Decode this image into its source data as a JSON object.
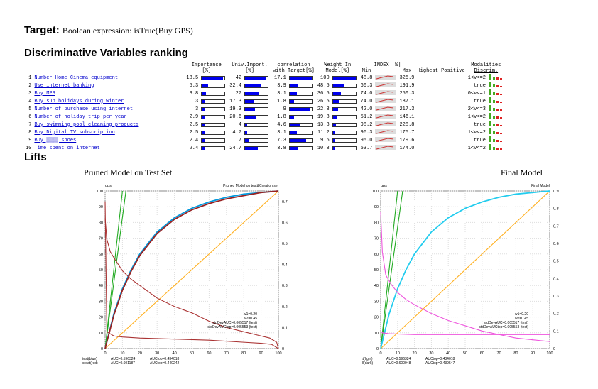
{
  "target": {
    "label": "Target:",
    "expression": "Boolean expression: isTrue(Buy GPS)"
  },
  "section_ranking": "Discriminative Variables ranking",
  "section_lifts": "Lifts",
  "table": {
    "headers": {
      "importance": "Importance",
      "importance_unit": "[%]",
      "univ": "Univ.Import.",
      "univ_unit": "[%]",
      "corr": "correlation",
      "corr_unit": "with Target[%]",
      "weight": "Weight In",
      "weight_unit": "Model[%]",
      "index": "INDEX [%]",
      "min": "Min",
      "max": "Max",
      "hp": "Highest Positive",
      "discrim": "Discrim.",
      "modalities": "Modalities"
    },
    "rows": [
      {
        "rank": "1",
        "name": "Number Home Cinema equipment",
        "importance": 18.5,
        "univ": 42.0,
        "corr": 17.1,
        "weight": 100.0,
        "min": "48.8",
        "max": "325.9",
        "mod": "1<v<=2"
      },
      {
        "rank": "2",
        "name": "Use internet banking",
        "importance": 5.3,
        "univ": 32.4,
        "corr": 3.9,
        "weight": 48.5,
        "min": "60.3",
        "max": "191.9",
        "mod": "true"
      },
      {
        "rank": "3",
        "name": "Buy MP3",
        "importance": 3.8,
        "univ": 27.0,
        "corr": 3.1,
        "weight": 36.5,
        "min": "74.0",
        "max": "250.3",
        "mod": "0<v<=1"
      },
      {
        "rank": "4",
        "name": "Buy sun holidays during winter",
        "importance": 3.0,
        "univ": 17.3,
        "corr": 1.8,
        "weight": 26.5,
        "min": "74.0",
        "max": "187.1",
        "mod": "true"
      },
      {
        "rank": "5",
        "name": "Number of purchase using internet",
        "importance": 3.0,
        "univ": 19.3,
        "corr": 9.0,
        "weight": 22.3,
        "min": "42.0",
        "max": "217.3",
        "mod": "2<v<=3"
      },
      {
        "rank": "6",
        "name": "Number of holiday trip per year",
        "importance": 2.9,
        "univ": 20.6,
        "corr": 1.8,
        "weight": 19.8,
        "min": "51.2",
        "max": "146.1",
        "mod": "1<v<=2"
      },
      {
        "rank": "7",
        "name": "Buy swimming pool cleaning products",
        "importance": 2.5,
        "univ": 4.0,
        "corr": 4.6,
        "weight": 13.3,
        "min": "98.2",
        "max": "228.8",
        "mod": "true"
      },
      {
        "rank": "8",
        "name": "Buy Digital TV subscription",
        "importance": 2.5,
        "univ": 4.7,
        "corr": 3.1,
        "weight": 11.2,
        "min": "96.3",
        "max": "175.7",
        "mod": "1<v<=2"
      },
      {
        "rank": "9",
        "name": "Buy ▒▒▒▒ shoes",
        "importance": 2.4,
        "univ": 7.0,
        "corr": 7.3,
        "weight": 9.6,
        "min": "95.0",
        "max": "179.6",
        "mod": "true"
      },
      {
        "rank": "10",
        "name": "Time spent on internet",
        "importance": 2.4,
        "univ": 24.7,
        "corr": 3.8,
        "weight": 10.3,
        "min": "53.7",
        "max": "174.0",
        "mod": "1<v<=2"
      }
    ]
  },
  "chart_data": [
    {
      "type": "line",
      "title": "Pruned Model on Test Set",
      "inner_title": "Pruned Model on test&Creation set",
      "ylabel": "gps",
      "xlim": [
        0,
        100
      ],
      "ylim": [
        0,
        100
      ],
      "y2lim": [
        0,
        0.75
      ],
      "x_ticks": [
        "0",
        "10",
        "20",
        "30",
        "40",
        "50",
        "60",
        "70",
        "80",
        "90",
        "100"
      ],
      "y_ticks": [
        "0",
        "10",
        "20",
        "30",
        "40",
        "50",
        "60",
        "70",
        "80",
        "90",
        "100"
      ],
      "y2_ticks": [
        "0",
        "0.1",
        "0.2",
        "0.3",
        "0.4",
        "0.5",
        "0.6",
        "0.7"
      ],
      "annotations": [
        "w1=0.20",
        "w2=0.45",
        "stdDevAUC=0.005517 (test)",
        "stdDevAUCtop=0.005553 (test)"
      ],
      "footer": [
        [
          "test(blue)",
          "AUC=0.596324",
          "AUCtop=0.434018"
        ],
        [
          "creat(red)",
          "AUC=0.601187",
          "AUCtop=0.440242"
        ]
      ],
      "series": [
        {
          "color": "#22aa22",
          "axis": "left",
          "x": [
            0,
            12
          ],
          "y": [
            0,
            100
          ]
        },
        {
          "color": "#22aa22",
          "axis": "left",
          "x": [
            0,
            10
          ],
          "y": [
            0,
            100
          ]
        },
        {
          "color": "#ffb020",
          "axis": "left",
          "x": [
            0,
            100
          ],
          "y": [
            0,
            100
          ]
        },
        {
          "color": "#0099dd",
          "axis": "left",
          "x": [
            0,
            5,
            10,
            15,
            20,
            30,
            40,
            50,
            60,
            70,
            80,
            90,
            100
          ],
          "y": [
            0,
            22,
            38,
            50,
            60,
            74,
            83,
            89,
            93,
            96,
            98,
            99,
            100
          ]
        },
        {
          "color": "#992222",
          "axis": "left",
          "x": [
            0,
            5,
            10,
            15,
            20,
            30,
            40,
            50,
            60,
            70,
            80,
            90,
            100
          ],
          "y": [
            0,
            21,
            37,
            49,
            59,
            73,
            82,
            88,
            92,
            95,
            97,
            99,
            100
          ]
        },
        {
          "color": "#aa3333",
          "axis": "right",
          "x": [
            0,
            1,
            3,
            6,
            10,
            15,
            20,
            30,
            40,
            50,
            60,
            70,
            80,
            90,
            95,
            99,
            100
          ],
          "y": [
            0.62,
            0.52,
            0.46,
            0.42,
            0.37,
            0.33,
            0.3,
            0.24,
            0.2,
            0.17,
            0.13,
            0.1,
            0.08,
            0.06,
            0.05,
            0.03,
            0.0
          ]
        },
        {
          "color": "#aa3333",
          "axis": "right",
          "x": [
            0,
            1,
            5,
            10,
            20,
            40,
            60,
            80,
            90,
            96,
            100
          ],
          "y": [
            0.7,
            0.08,
            0.06,
            0.055,
            0.05,
            0.045,
            0.04,
            0.03,
            0.025,
            0.02,
            0.0
          ]
        }
      ]
    },
    {
      "type": "line",
      "title": "Final Model",
      "inner_title": "Final Model",
      "ylabel": "gps",
      "xlim": [
        0,
        100
      ],
      "ylim": [
        0,
        100
      ],
      "y2lim": [
        0,
        0.9
      ],
      "x_ticks": [
        "0",
        "10",
        "20",
        "30",
        "40",
        "50",
        "60",
        "70",
        "80",
        "90",
        "100"
      ],
      "y_ticks": [
        "0",
        "10",
        "20",
        "30",
        "40",
        "50",
        "60",
        "70",
        "80",
        "90",
        "100"
      ],
      "y2_ticks": [
        "0",
        "0.1",
        "0.2",
        "0.3",
        "0.4",
        "0.5",
        "0.6",
        "0.7",
        "0.8",
        "0.9"
      ],
      "annotations": [
        "w1=0.20",
        "w2=0.45",
        "stdDevAUC=0.005517 (test)",
        "stdDevAUCtop=0.005553 (test)"
      ],
      "footer": [
        [
          "test(light)",
          "AUC=0.596324",
          "AUCtop=0.434018"
        ],
        [
          "Full(dark)",
          "AUC=0.600948",
          "AUCtop=0.439547"
        ]
      ],
      "series": [
        {
          "color": "#22aa22",
          "axis": "left",
          "x": [
            0,
            13
          ],
          "y": [
            0,
            100
          ]
        },
        {
          "color": "#22aa22",
          "axis": "left",
          "x": [
            0,
            10
          ],
          "y": [
            0,
            100
          ]
        },
        {
          "color": "#ffb020",
          "axis": "left",
          "x": [
            0,
            100
          ],
          "y": [
            0,
            100
          ]
        },
        {
          "color": "#22ccee",
          "axis": "left",
          "x": [
            0,
            5,
            10,
            15,
            20,
            30,
            40,
            50,
            60,
            70,
            80,
            90,
            100
          ],
          "y": [
            0,
            22,
            38,
            50,
            60,
            74,
            83,
            89,
            93,
            96,
            98,
            99,
            100
          ]
        },
        {
          "color": "#ee55dd",
          "axis": "right",
          "x": [
            0,
            1,
            3,
            6,
            10,
            15,
            20,
            30,
            40,
            50,
            60,
            70,
            80,
            90,
            100
          ],
          "y": [
            0.78,
            0.55,
            0.42,
            0.37,
            0.32,
            0.28,
            0.25,
            0.2,
            0.16,
            0.13,
            0.1,
            0.08,
            0.06,
            0.05,
            0.04
          ]
        },
        {
          "color": "#ee55dd",
          "axis": "right",
          "x": [
            0,
            1,
            5,
            20,
            50,
            80,
            100
          ],
          "y": [
            0.1,
            0.09,
            0.085,
            0.08,
            0.08,
            0.08,
            0.08
          ]
        }
      ]
    }
  ]
}
